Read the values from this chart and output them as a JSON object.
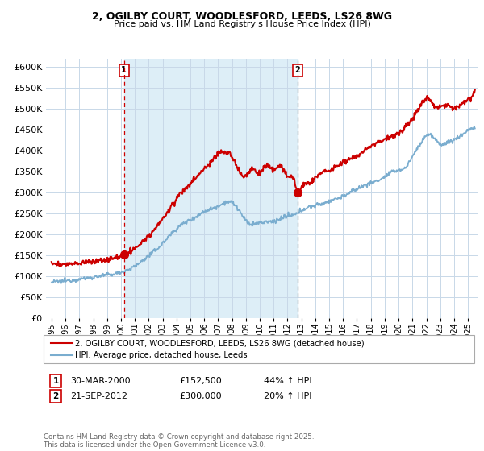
{
  "title1": "2, OGILBY COURT, WOODLESFORD, LEEDS, LS26 8WG",
  "title2": "Price paid vs. HM Land Registry's House Price Index (HPI)",
  "sale1_date": "30-MAR-2000",
  "sale1_price": 152500,
  "sale1_label": "44% ↑ HPI",
  "sale2_date": "21-SEP-2012",
  "sale2_price": 300000,
  "sale2_label": "20% ↑ HPI",
  "legend1": "2, OGILBY COURT, WOODLESFORD, LEEDS, LS26 8WG (detached house)",
  "legend2": "HPI: Average price, detached house, Leeds",
  "footnote": "Contains HM Land Registry data © Crown copyright and database right 2025.\nThis data is licensed under the Open Government Licence v3.0.",
  "property_color": "#cc0000",
  "hpi_color": "#7aadcf",
  "shade_color": "#ddeef7",
  "sale1_x": 2000.22,
  "sale2_x": 2012.72,
  "ylim_max": 620000,
  "xlim_min": 1994.6,
  "xlim_max": 2025.7
}
